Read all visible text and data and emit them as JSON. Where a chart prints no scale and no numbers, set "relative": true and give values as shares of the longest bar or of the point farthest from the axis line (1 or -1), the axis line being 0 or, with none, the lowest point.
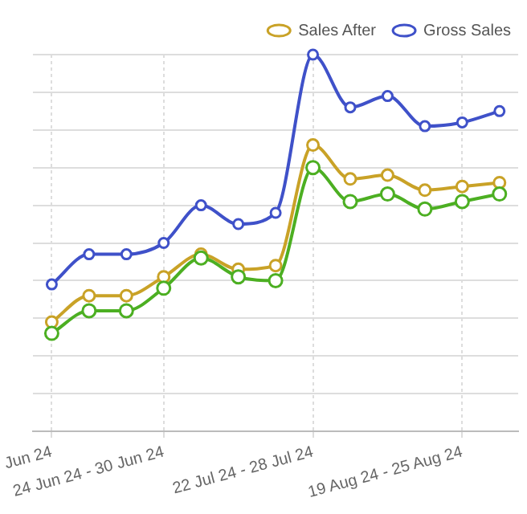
{
  "chart_data": {
    "type": "line",
    "relative": true,
    "categories": [
      "Jun 24",
      null,
      null,
      "24 Jun 24 - 30 Jun 24",
      null,
      null,
      null,
      "22 Jul 24 - 28 Jul 24",
      null,
      null,
      null,
      "19 Aug 24 - 25 Aug 24",
      null
    ],
    "series": [
      {
        "name": "Gross Sales",
        "color": "#3f51c9",
        "values": [
          0.39,
          0.47,
          0.47,
          0.5,
          0.6,
          0.55,
          0.58,
          1,
          0.86,
          0.89,
          0.81,
          0.82,
          0.85
        ]
      },
      {
        "name": "Sales After",
        "color": "#c9a227",
        "values": [
          0.29,
          0.36,
          0.36,
          0.41,
          0.47,
          0.43,
          0.44,
          0.76,
          0.67,
          0.68,
          0.64,
          0.65,
          0.66
        ]
      },
      {
        "color": "#4caf22",
        "values": [
          0.26,
          0.32,
          0.32,
          0.38,
          0.46,
          0.41,
          0.4,
          0.7,
          0.61,
          0.63,
          0.59,
          0.61,
          0.63
        ]
      }
    ],
    "grid": true,
    "legend": "top right",
    "marker": "circle",
    "line_style": "solid"
  }
}
